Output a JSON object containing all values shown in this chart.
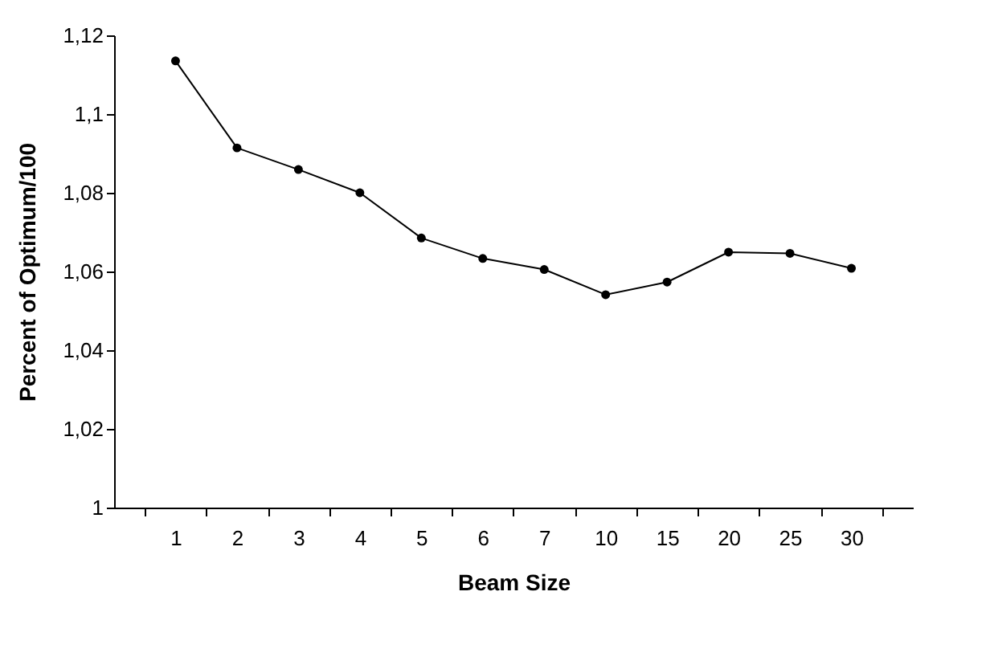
{
  "chart_data": {
    "type": "line",
    "xlabel": "Beam Size",
    "ylabel": "Percent of Optimum/100",
    "categories": [
      "1",
      "2",
      "3",
      "4",
      "5",
      "6",
      "7",
      "10",
      "15",
      "20",
      "25",
      "30"
    ],
    "series": [
      {
        "color": "#000000",
        "values": [
          1.1135,
          1.0914,
          1.0859,
          1.08,
          1.0685,
          1.0633,
          1.0605,
          1.0541,
          1.0573,
          1.0649,
          1.0646,
          1.0608
        ]
      }
    ],
    "ylim": [
      1,
      1.12
    ],
    "yticks": [
      {
        "value": 1,
        "label": "1"
      },
      {
        "value": 1.02,
        "label": "1,02"
      },
      {
        "value": 1.04,
        "label": "1,04"
      },
      {
        "value": 1.06,
        "label": "1,06"
      },
      {
        "value": 1.08,
        "label": "1,08"
      },
      {
        "value": 1.1,
        "label": "1,1"
      },
      {
        "value": 1.12,
        "label": "1,12"
      }
    ],
    "marker": "circle",
    "line_style": "solid",
    "grid": false,
    "legend": false
  }
}
